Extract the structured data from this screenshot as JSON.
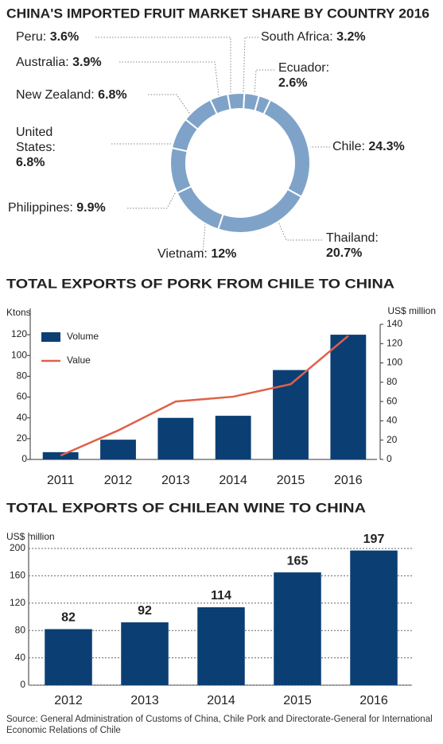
{
  "chart_data": [
    {
      "type": "pie",
      "donut": true,
      "title": "CHINA'S IMPORTED FRUIT MARKET SHARE BY COUNTRY 2016",
      "categories": [
        "South Africa:",
        "Ecuador:",
        "Chile:",
        "Thailand:",
        "Vietnam:",
        "Philippines:",
        "United States:",
        "New Zealand:",
        "Australia:",
        "Peru:"
      ],
      "values": [
        3.2,
        2.6,
        24.3,
        20.7,
        12,
        9.9,
        6.8,
        6.8,
        3.9,
        3.6
      ],
      "value_labels": [
        "3.2%",
        "2.6%",
        "24.3%",
        "20.7%",
        "12%",
        "9.9%",
        "6.8%",
        "6.8%",
        "3.9%",
        "3.6%"
      ],
      "color": "#7fa3c8"
    },
    {
      "type": "bar",
      "title": "TOTAL EXPORTS OF PORK FROM CHILE TO CHINA",
      "y_label": "Ktons",
      "y2_label": "US$ million",
      "categories": [
        "2011",
        "2012",
        "2013",
        "2014",
        "2015",
        "2016"
      ],
      "series": [
        {
          "name": "Volume",
          "type": "bar",
          "color": "#0b3f74",
          "values": [
            7,
            19,
            40,
            42,
            86,
            120
          ]
        },
        {
          "name": "Value",
          "type": "line",
          "axis": "y2",
          "color": "#e0604a",
          "values": [
            4,
            30,
            60,
            65,
            78,
            128
          ]
        }
      ],
      "ylim": [
        0,
        130
      ],
      "yticks": [
        0,
        20,
        40,
        60,
        80,
        100,
        120
      ],
      "y2lim": [
        0,
        140
      ],
      "y2ticks": [
        0,
        20,
        40,
        60,
        80,
        100,
        120,
        140
      ],
      "legend": "top-left",
      "grid": false
    },
    {
      "type": "bar",
      "title": "TOTAL EXPORTS OF CHILEAN WINE TO CHINA",
      "y_label": "US$ million",
      "categories": [
        "2012",
        "2013",
        "2014",
        "2015",
        "2016"
      ],
      "values": [
        82,
        92,
        114,
        165,
        197
      ],
      "color": "#0b3f74",
      "ylim": [
        0,
        200
      ],
      "yticks": [
        0,
        40,
        80,
        120,
        160,
        200
      ],
      "grid": true,
      "source": "Source: General Administration of Customs of China, Chile Pork and Directorate-General for International Economic Relations of Chile"
    }
  ]
}
